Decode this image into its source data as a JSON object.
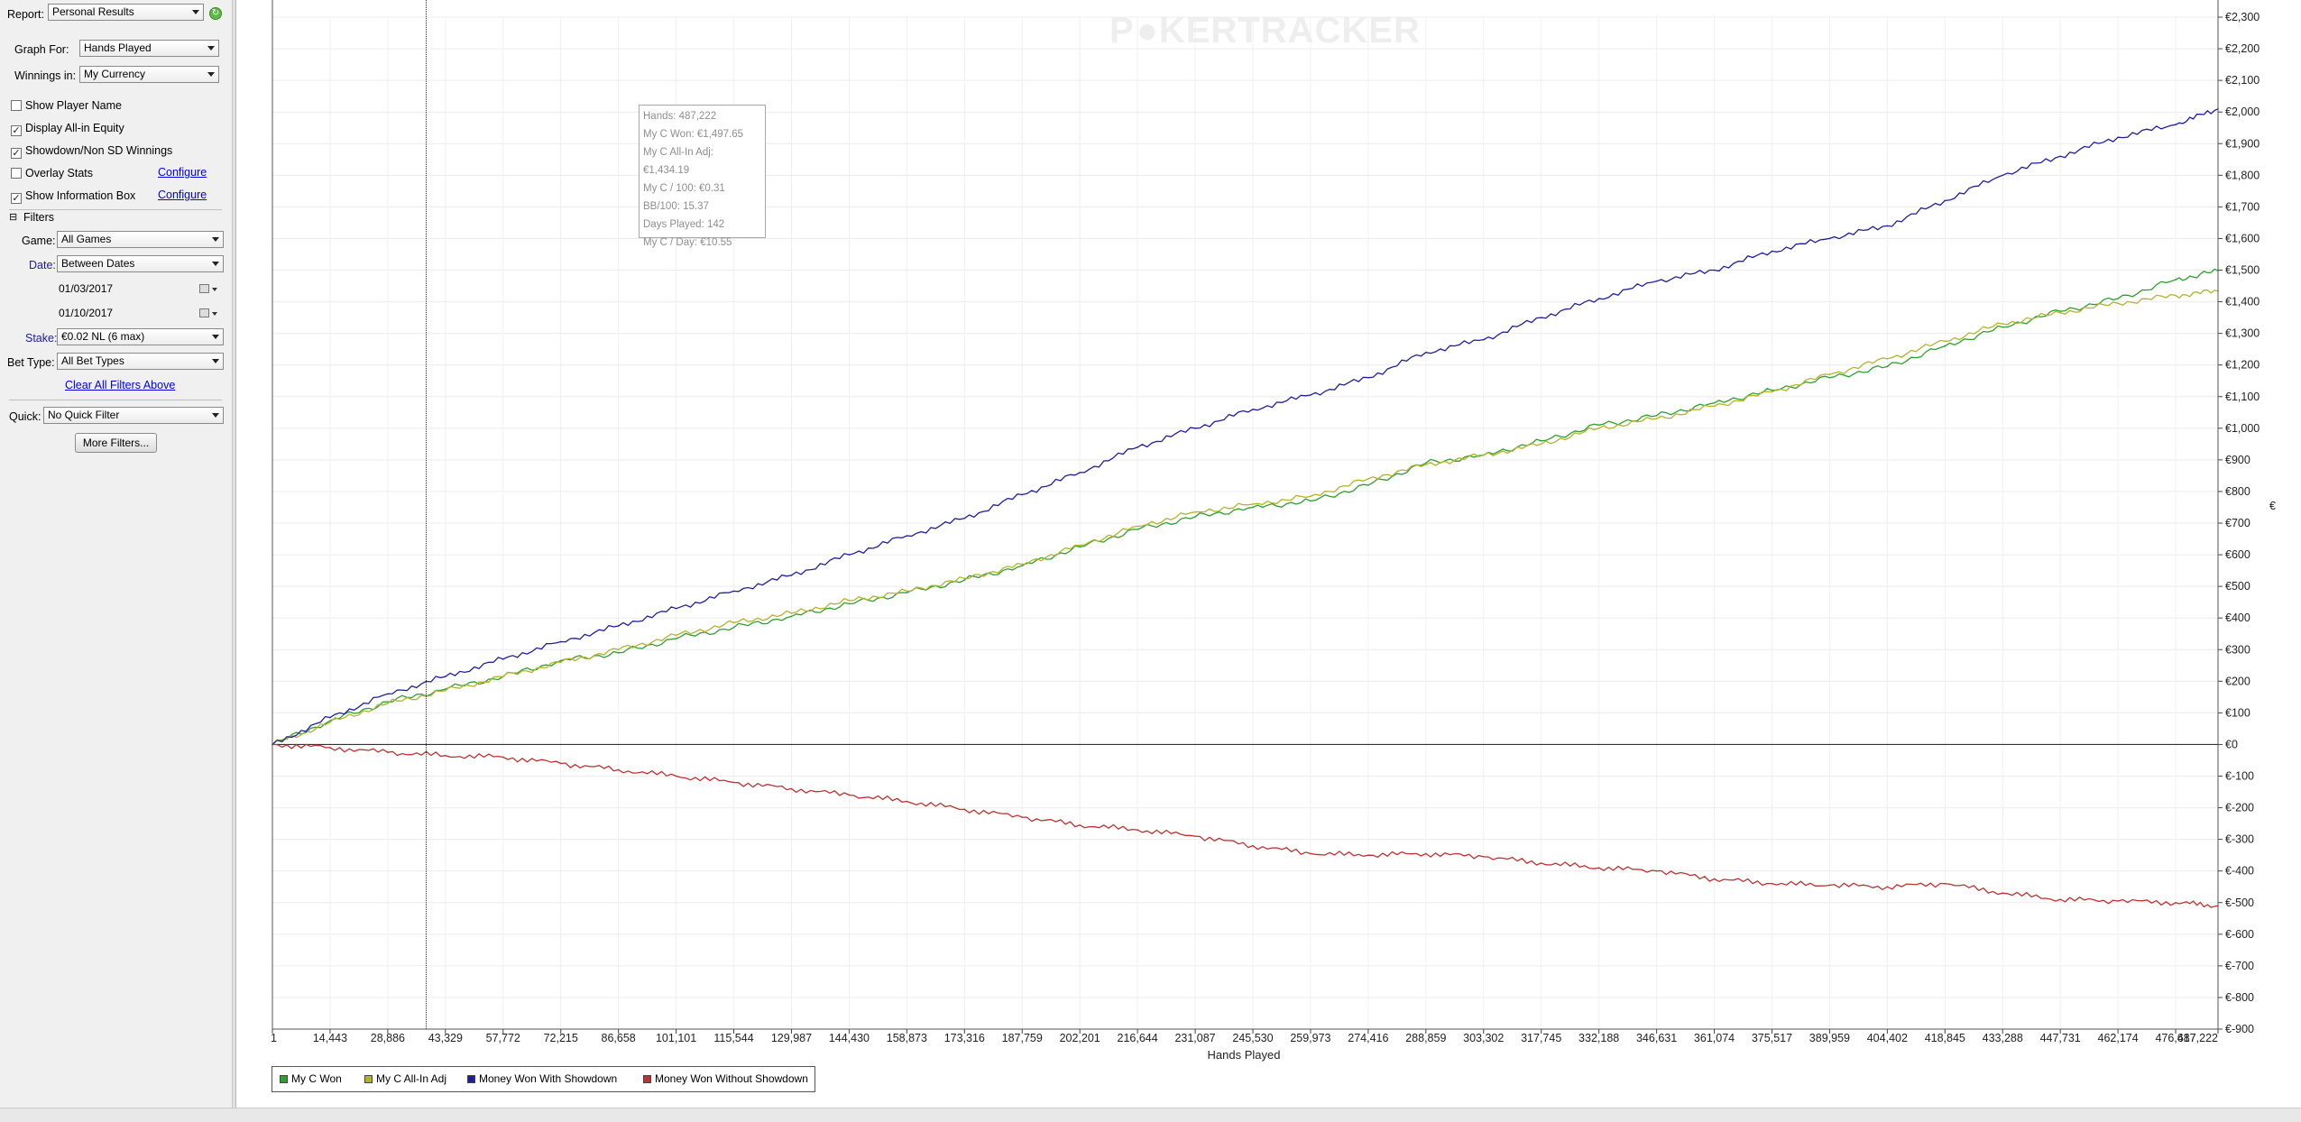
{
  "sidebar": {
    "report_label": "Report:",
    "report_value": "Personal Results",
    "graph_for_label": "Graph For:",
    "graph_for_value": "Hands Played",
    "winnings_in_label": "Winnings in:",
    "winnings_in_value": "My Currency",
    "options": [
      {
        "label": "Show Player Name",
        "checked": false
      },
      {
        "label": "Display All-in Equity",
        "checked": true
      },
      {
        "label": "Showdown/Non SD Winnings",
        "checked": true
      },
      {
        "label": "Overlay Stats",
        "checked": false
      },
      {
        "label": "Show Information Box",
        "checked": true
      }
    ],
    "configure_label": "Configure",
    "filters_header": "Filters",
    "game_label": "Game:",
    "game_value": "All Games",
    "date_label": "Date:",
    "date_value": "Between Dates",
    "date_from": "01/03/2017",
    "date_to": "01/10/2017",
    "stake_label": "Stake:",
    "stake_value": "€0.02 NL (6 max)",
    "bet_type_label": "Bet Type:",
    "bet_type_value": "All Bet Types",
    "clear_filters_label": "Clear All Filters Above",
    "quick_label": "Quick:",
    "quick_value": "No Quick Filter",
    "more_filters_label": "More Filters..."
  },
  "watermark": {
    "part1": "P",
    "part2": "KER",
    "part3": "TRACKER"
  },
  "info_box": {
    "lines": [
      "Hands: 487,222",
      "My C Won: €1,497.65",
      "My C All-In Adj: €1,434.19",
      "My C / 100: €0.31",
      "BB/100: 15.37",
      "Days Played: 142",
      "My C / Day: €10.55"
    ]
  },
  "y_axis_symbol": "€",
  "colors": {
    "won": "#2ea02e",
    "allin": "#b3b32a",
    "showdown": "#1f1f9e",
    "no_showdown": "#c03030",
    "accent_link": "#0000ee"
  },
  "chart_data": {
    "type": "line",
    "xlabel": "Hands Played",
    "x_ticks": [
      "1",
      "14,443",
      "28,886",
      "43,329",
      "57,772",
      "72,215",
      "86,658",
      "101,101",
      "115,544",
      "129,987",
      "144,430",
      "158,873",
      "173,316",
      "187,759",
      "202,201",
      "216,644",
      "231,087",
      "245,530",
      "259,973",
      "274,416",
      "288,859",
      "303,302",
      "317,745",
      "332,188",
      "346,631",
      "361,074",
      "375,517",
      "389,959",
      "404,402",
      "418,845",
      "433,288",
      "447,731",
      "462,174",
      "476,617",
      "487,222"
    ],
    "xlim": [
      1,
      487222
    ],
    "ylim": [
      -900,
      2300
    ],
    "y_ticks": [
      "€2,300",
      "€2,200",
      "€2,100",
      "€2,000",
      "€1,900",
      "€1,800",
      "€1,700",
      "€1,600",
      "€1,500",
      "€1,400",
      "€1,300",
      "€1,200",
      "€1,100",
      "€1,000",
      "€900",
      "€800",
      "€700",
      "€600",
      "€500",
      "€400",
      "€300",
      "€200",
      "€100",
      "€0",
      "€-100",
      "€-200",
      "€-300",
      "€-400",
      "€-500",
      "€-600",
      "€-700",
      "€-800",
      "€-900"
    ],
    "grid": true,
    "legend_position": "bottom-left",
    "cursor_x": 38500,
    "series": [
      {
        "name": "My C Won",
        "color": "#2ea02e",
        "x": [
          1,
          14443,
          28886,
          43329,
          57772,
          72215,
          86658,
          101101,
          115544,
          129987,
          144430,
          158873,
          173316,
          187759,
          202201,
          216644,
          231087,
          245530,
          259973,
          274416,
          288859,
          303302,
          317745,
          332188,
          346631,
          361074,
          375517,
          389959,
          404402,
          418845,
          433288,
          447731,
          462174,
          476617,
          487222
        ],
        "y": [
          0,
          75,
          135,
          175,
          215,
          265,
          290,
          335,
          370,
          405,
          445,
          480,
          520,
          565,
          625,
          680,
          720,
          750,
          770,
          820,
          890,
          915,
          960,
          1010,
          1040,
          1080,
          1120,
          1160,
          1195,
          1260,
          1320,
          1370,
          1410,
          1470,
          1498
        ]
      },
      {
        "name": "My C All-In Adj",
        "color": "#b3b32a",
        "x": [
          1,
          14443,
          28886,
          43329,
          57772,
          72215,
          86658,
          101101,
          115544,
          129987,
          144430,
          158873,
          173316,
          187759,
          202201,
          216644,
          231087,
          245530,
          259973,
          274416,
          288859,
          303302,
          317745,
          332188,
          346631,
          361074,
          375517,
          389959,
          404402,
          418845,
          433288,
          447731,
          462174,
          476617,
          487222
        ],
        "y": [
          0,
          70,
          130,
          170,
          215,
          260,
          300,
          345,
          385,
          415,
          455,
          485,
          525,
          570,
          630,
          690,
          735,
          760,
          785,
          840,
          885,
          915,
          950,
          1000,
          1030,
          1070,
          1115,
          1170,
          1220,
          1275,
          1330,
          1365,
          1395,
          1420,
          1434
        ]
      },
      {
        "name": "Money Won With Showdown",
        "color": "#1f1f9e",
        "x": [
          1,
          14443,
          28886,
          43329,
          57772,
          72215,
          86658,
          101101,
          115544,
          129987,
          144430,
          158873,
          173316,
          187759,
          202201,
          216644,
          231087,
          245530,
          259973,
          274416,
          288859,
          303302,
          317745,
          332188,
          346631,
          361074,
          375517,
          389959,
          404402,
          418845,
          433288,
          447731,
          462174,
          476617,
          487222
        ],
        "y": [
          0,
          85,
          160,
          215,
          270,
          325,
          375,
          430,
          485,
          535,
          600,
          660,
          715,
          790,
          860,
          940,
          1000,
          1060,
          1105,
          1160,
          1240,
          1280,
          1350,
          1410,
          1465,
          1500,
          1560,
          1600,
          1640,
          1720,
          1800,
          1860,
          1920,
          1960,
          2010
        ]
      },
      {
        "name": "Money Won Without Showdown",
        "color": "#c03030",
        "x": [
          1,
          14443,
          28886,
          43329,
          57772,
          72215,
          86658,
          101101,
          115544,
          129987,
          144430,
          158873,
          173316,
          187759,
          202201,
          216644,
          231087,
          245530,
          259973,
          274416,
          288859,
          303302,
          317745,
          332188,
          346631,
          361074,
          375517,
          389959,
          404402,
          418845,
          433288,
          447731,
          462174,
          476617,
          487222
        ],
        "y": [
          0,
          -10,
          -25,
          -35,
          -40,
          -60,
          -80,
          -100,
          -120,
          -140,
          -160,
          -180,
          -205,
          -230,
          -255,
          -270,
          -290,
          -320,
          -345,
          -350,
          -345,
          -355,
          -375,
          -390,
          -400,
          -425,
          -440,
          -445,
          -450,
          -440,
          -470,
          -490,
          -495,
          -500,
          -510
        ]
      }
    ]
  }
}
